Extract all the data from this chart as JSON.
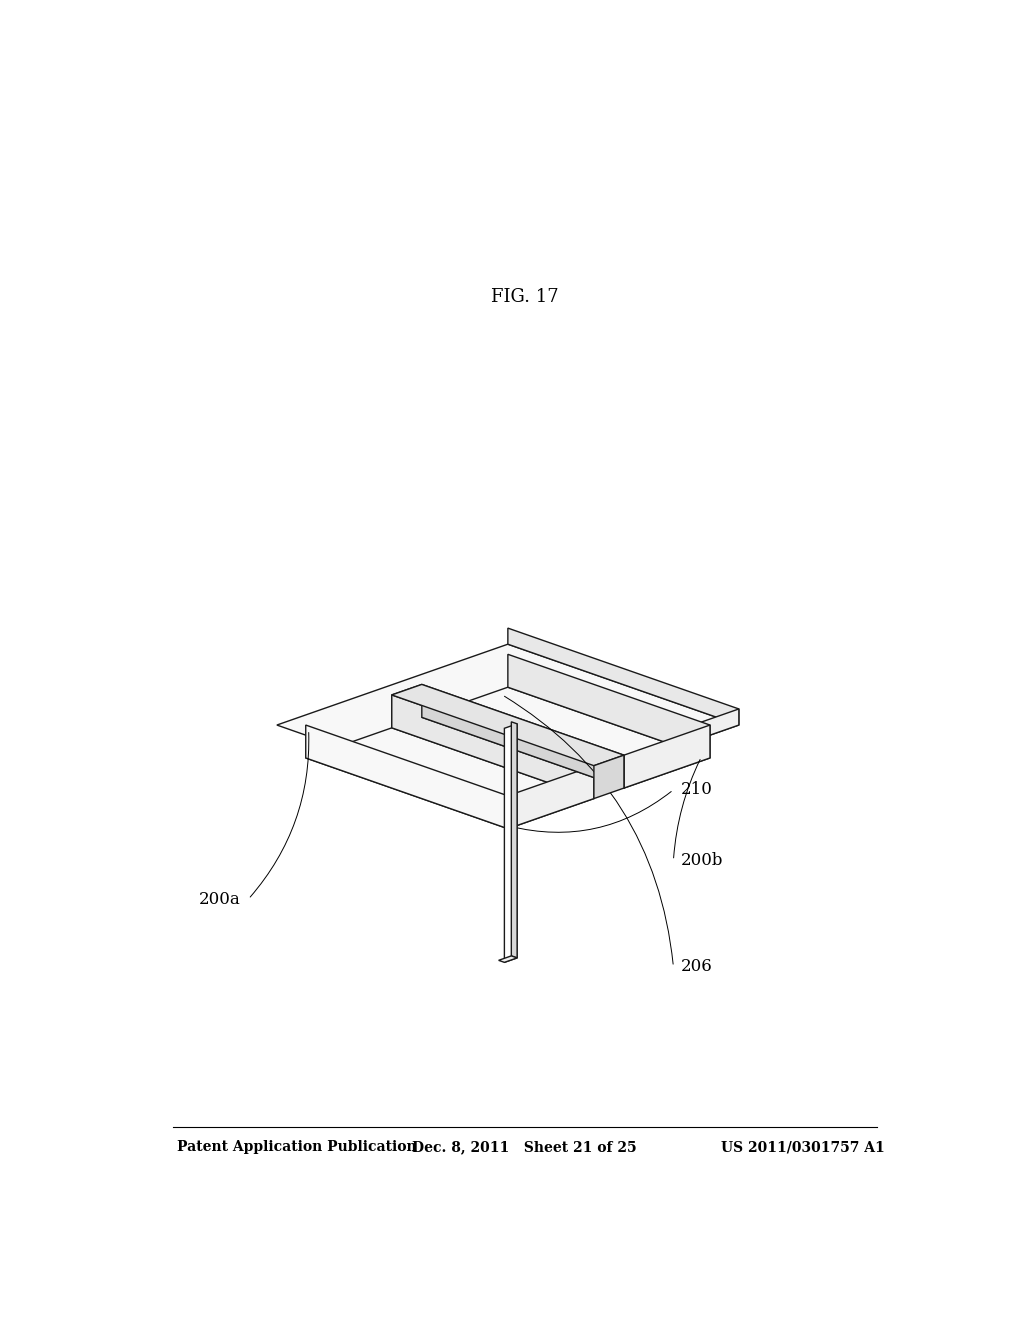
{
  "background_color": "#ffffff",
  "line_color": "#1a1a1a",
  "line_width": 1.0,
  "header_left": "Patent Application Publication",
  "header_mid": "Dec. 8, 2011   Sheet 21 of 25",
  "header_right": "US 2011/0301757 A1",
  "figure_label": "FIG. 17",
  "face_top": "#f8f8f8",
  "face_right": "#e8e8e8",
  "face_front": "#f0f0f0",
  "face_inner": "#e0e0e0",
  "face_white": "#ffffff"
}
